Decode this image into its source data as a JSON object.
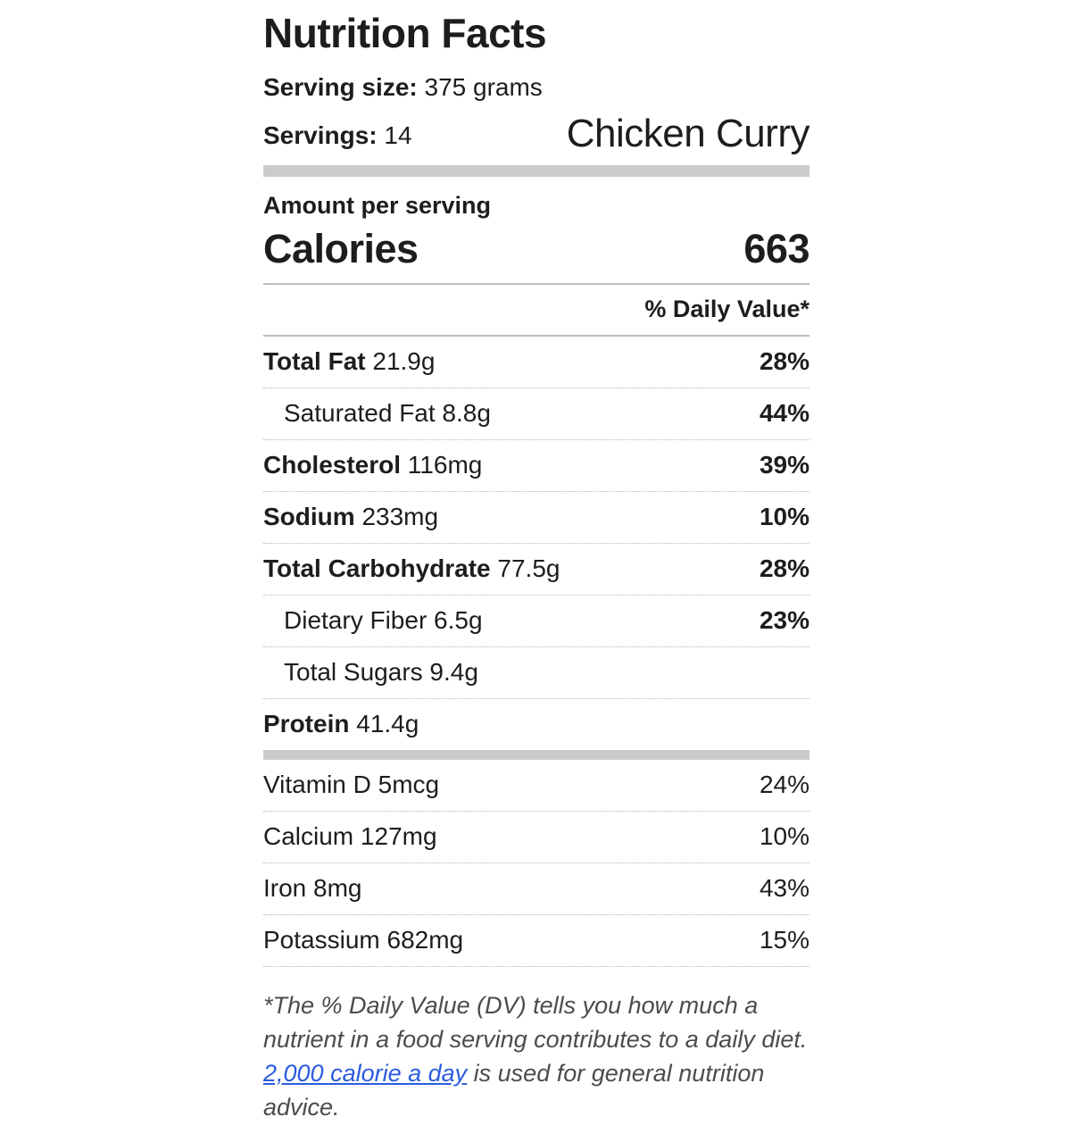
{
  "label": {
    "title": "Nutrition Facts",
    "serving_size_label": "Serving size:",
    "serving_size_value": "375 grams",
    "servings_label": "Servings:",
    "servings_value": "14",
    "recipe_name": "Chicken Curry",
    "amount_per_serving": "Amount per serving",
    "calories_label": "Calories",
    "calories_value": "663",
    "daily_value_header": "% Daily Value*",
    "nutrients": [
      {
        "name": "Total Fat",
        "amount": "21.9g",
        "dv": "28%",
        "bold": true,
        "indent": false
      },
      {
        "name": "Saturated Fat",
        "amount": "8.8g",
        "dv": "44%",
        "bold": false,
        "indent": true
      },
      {
        "name": "Cholesterol",
        "amount": "116mg",
        "dv": "39%",
        "bold": true,
        "indent": false
      },
      {
        "name": "Sodium",
        "amount": "233mg",
        "dv": "10%",
        "bold": true,
        "indent": false
      },
      {
        "name": "Total Carbohydrate",
        "amount": "77.5g",
        "dv": "28%",
        "bold": true,
        "indent": false
      },
      {
        "name": "Dietary Fiber",
        "amount": "6.5g",
        "dv": "23%",
        "bold": false,
        "indent": true
      },
      {
        "name": "Total Sugars",
        "amount": "9.4g",
        "dv": "",
        "bold": false,
        "indent": true
      },
      {
        "name": "Protein",
        "amount": "41.4g",
        "dv": "",
        "bold": true,
        "indent": false
      }
    ],
    "micronutrients": [
      {
        "name": "Vitamin D",
        "amount": "5mcg",
        "dv": "24%"
      },
      {
        "name": "Calcium",
        "amount": "127mg",
        "dv": "10%"
      },
      {
        "name": "Iron",
        "amount": "8mg",
        "dv": "43%"
      },
      {
        "name": "Potassium",
        "amount": "682mg",
        "dv": "15%"
      }
    ],
    "footnote": {
      "before_link": "*The % Daily Value (DV) tells you how much a nutrient in a food serving contributes to a daily diet. ",
      "link_text": "2,000 calorie a day",
      "after_link": " is used for general nutrition advice."
    },
    "colors": {
      "text": "#1d1d1d",
      "muted_text": "#4c4c4c",
      "link": "#2b5ce0",
      "thick_bar": "#cbcbcb",
      "solid_line": "#bdbdbd",
      "dotted_line": "#b5b5b5"
    }
  }
}
